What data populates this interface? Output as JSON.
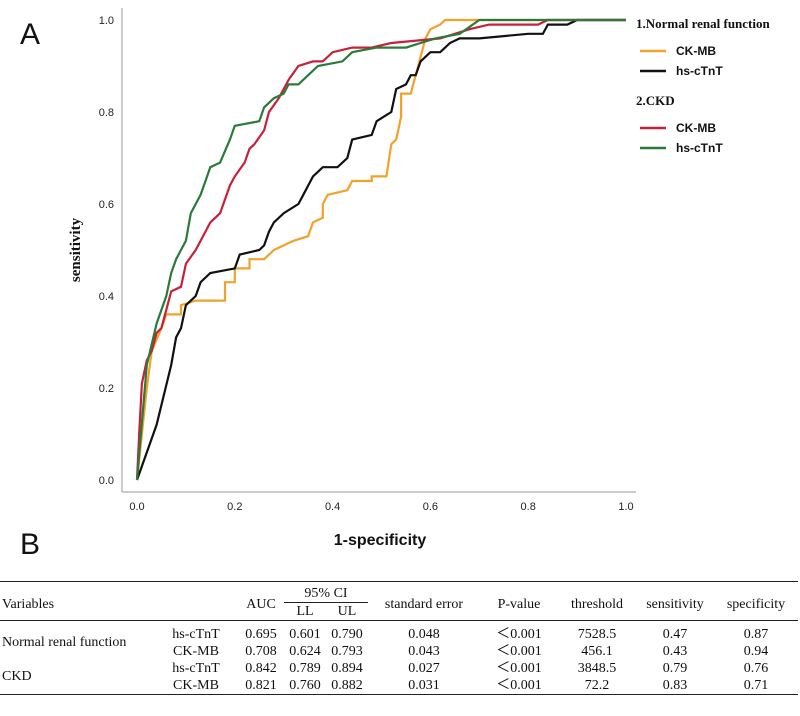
{
  "panel_a_label": "A",
  "panel_b_label": "B",
  "chart_data": {
    "type": "line",
    "title": "",
    "xlabel": "1-specificity",
    "ylabel": "sensitivity",
    "xlim": [
      0,
      1
    ],
    "ylim": [
      0,
      1
    ],
    "xticks": [
      "0.0",
      "0.2",
      "0.4",
      "0.6",
      "0.8",
      "1.0"
    ],
    "yticks": [
      "0.0",
      "0.2",
      "0.4",
      "0.6",
      "0.8",
      "1.0"
    ],
    "legend": {
      "groups": [
        {
          "title": "1.Normal renal function",
          "items": [
            {
              "label": "CK-MB",
              "color": "#F2A22A"
            },
            {
              "label": "hs-cTnT",
              "color": "#111111"
            }
          ]
        },
        {
          "title": "2.CKD",
          "items": [
            {
              "label": "CK-MB",
              "color": "#C8203A"
            },
            {
              "label": "hs-cTnT",
              "color": "#2A7A3A"
            }
          ]
        }
      ]
    },
    "series": [
      {
        "name": "Normal renal function CK-MB",
        "color": "#F2A22A",
        "points": [
          [
            0,
            0
          ],
          [
            0.01,
            0.1
          ],
          [
            0.02,
            0.2
          ],
          [
            0.03,
            0.28
          ],
          [
            0.05,
            0.33
          ],
          [
            0.06,
            0.36
          ],
          [
            0.09,
            0.36
          ],
          [
            0.09,
            0.38
          ],
          [
            0.12,
            0.39
          ],
          [
            0.18,
            0.39
          ],
          [
            0.18,
            0.43
          ],
          [
            0.2,
            0.43
          ],
          [
            0.2,
            0.46
          ],
          [
            0.23,
            0.46
          ],
          [
            0.23,
            0.48
          ],
          [
            0.26,
            0.48
          ],
          [
            0.28,
            0.5
          ],
          [
            0.3,
            0.51
          ],
          [
            0.32,
            0.52
          ],
          [
            0.35,
            0.53
          ],
          [
            0.36,
            0.56
          ],
          [
            0.38,
            0.57
          ],
          [
            0.38,
            0.6
          ],
          [
            0.39,
            0.62
          ],
          [
            0.43,
            0.63
          ],
          [
            0.44,
            0.65
          ],
          [
            0.48,
            0.65
          ],
          [
            0.48,
            0.66
          ],
          [
            0.51,
            0.66
          ],
          [
            0.52,
            0.73
          ],
          [
            0.53,
            0.74
          ],
          [
            0.54,
            0.79
          ],
          [
            0.54,
            0.84
          ],
          [
            0.56,
            0.84
          ],
          [
            0.58,
            0.92
          ],
          [
            0.59,
            0.96
          ],
          [
            0.6,
            0.98
          ],
          [
            0.62,
            0.99
          ],
          [
            0.63,
            1.0
          ],
          [
            0.68,
            1.0
          ],
          [
            1.0,
            1.0
          ]
        ]
      },
      {
        "name": "Normal renal function hs-cTnT",
        "color": "#111111",
        "points": [
          [
            0,
            0
          ],
          [
            0.04,
            0.12
          ],
          [
            0.07,
            0.25
          ],
          [
            0.08,
            0.31
          ],
          [
            0.09,
            0.33
          ],
          [
            0.1,
            0.38
          ],
          [
            0.12,
            0.4
          ],
          [
            0.13,
            0.43
          ],
          [
            0.15,
            0.45
          ],
          [
            0.2,
            0.46
          ],
          [
            0.21,
            0.49
          ],
          [
            0.25,
            0.5
          ],
          [
            0.26,
            0.51
          ],
          [
            0.27,
            0.54
          ],
          [
            0.28,
            0.56
          ],
          [
            0.3,
            0.58
          ],
          [
            0.33,
            0.6
          ],
          [
            0.34,
            0.62
          ],
          [
            0.36,
            0.66
          ],
          [
            0.38,
            0.68
          ],
          [
            0.41,
            0.68
          ],
          [
            0.43,
            0.7
          ],
          [
            0.44,
            0.74
          ],
          [
            0.48,
            0.75
          ],
          [
            0.49,
            0.78
          ],
          [
            0.52,
            0.8
          ],
          [
            0.53,
            0.85
          ],
          [
            0.55,
            0.86
          ],
          [
            0.56,
            0.88
          ],
          [
            0.57,
            0.88
          ],
          [
            0.58,
            0.91
          ],
          [
            0.6,
            0.93
          ],
          [
            0.62,
            0.93
          ],
          [
            0.64,
            0.95
          ],
          [
            0.66,
            0.96
          ],
          [
            0.7,
            0.96
          ],
          [
            0.8,
            0.97
          ],
          [
            0.83,
            0.97
          ],
          [
            0.84,
            0.99
          ],
          [
            0.88,
            0.99
          ],
          [
            0.9,
            1.0
          ],
          [
            1.0,
            1.0
          ]
        ]
      },
      {
        "name": "CKD CK-MB",
        "color": "#C8203A",
        "points": [
          [
            0,
            0
          ],
          [
            0.005,
            0.11
          ],
          [
            0.01,
            0.21
          ],
          [
            0.02,
            0.26
          ],
          [
            0.03,
            0.28
          ],
          [
            0.04,
            0.32
          ],
          [
            0.05,
            0.33
          ],
          [
            0.06,
            0.37
          ],
          [
            0.07,
            0.41
          ],
          [
            0.09,
            0.42
          ],
          [
            0.1,
            0.47
          ],
          [
            0.12,
            0.5
          ],
          [
            0.13,
            0.52
          ],
          [
            0.15,
            0.56
          ],
          [
            0.17,
            0.58
          ],
          [
            0.18,
            0.61
          ],
          [
            0.19,
            0.64
          ],
          [
            0.2,
            0.66
          ],
          [
            0.22,
            0.69
          ],
          [
            0.23,
            0.72
          ],
          [
            0.24,
            0.73
          ],
          [
            0.26,
            0.76
          ],
          [
            0.27,
            0.8
          ],
          [
            0.29,
            0.83
          ],
          [
            0.31,
            0.87
          ],
          [
            0.33,
            0.9
          ],
          [
            0.36,
            0.91
          ],
          [
            0.38,
            0.91
          ],
          [
            0.4,
            0.93
          ],
          [
            0.44,
            0.94
          ],
          [
            0.48,
            0.94
          ],
          [
            0.52,
            0.95
          ],
          [
            0.62,
            0.96
          ],
          [
            0.68,
            0.98
          ],
          [
            0.72,
            0.99
          ],
          [
            0.82,
            0.99
          ],
          [
            0.84,
            1.0
          ],
          [
            1.0,
            1.0
          ]
        ]
      },
      {
        "name": "CKD hs-cTnT",
        "color": "#2A7A3A",
        "points": [
          [
            0,
            0
          ],
          [
            0.02,
            0.25
          ],
          [
            0.04,
            0.34
          ],
          [
            0.06,
            0.4
          ],
          [
            0.07,
            0.45
          ],
          [
            0.08,
            0.48
          ],
          [
            0.1,
            0.52
          ],
          [
            0.11,
            0.58
          ],
          [
            0.12,
            0.6
          ],
          [
            0.13,
            0.62
          ],
          [
            0.14,
            0.65
          ],
          [
            0.15,
            0.68
          ],
          [
            0.17,
            0.69
          ],
          [
            0.19,
            0.74
          ],
          [
            0.2,
            0.77
          ],
          [
            0.25,
            0.78
          ],
          [
            0.26,
            0.81
          ],
          [
            0.28,
            0.83
          ],
          [
            0.3,
            0.84
          ],
          [
            0.31,
            0.86
          ],
          [
            0.33,
            0.86
          ],
          [
            0.37,
            0.9
          ],
          [
            0.42,
            0.91
          ],
          [
            0.44,
            0.93
          ],
          [
            0.49,
            0.94
          ],
          [
            0.55,
            0.94
          ],
          [
            0.58,
            0.95
          ],
          [
            0.61,
            0.96
          ],
          [
            0.66,
            0.97
          ],
          [
            0.7,
            1.0
          ],
          [
            1.0,
            1.0
          ]
        ]
      }
    ]
  },
  "table": {
    "headers": {
      "variables": "Variables",
      "auc": "AUC",
      "ci": "95% CI",
      "ll": "LL",
      "ul": "UL",
      "se": "standard error",
      "p": "P-value",
      "threshold": "threshold",
      "sensitivity": "sensitivity",
      "specificity": "specificity"
    },
    "groups": [
      {
        "name": "Normal renal function",
        "rows": [
          {
            "marker": "hs-cTnT",
            "auc": "0.695",
            "ll": "0.601",
            "ul": "0.790",
            "se": "0.048",
            "p": "＜0.001",
            "threshold": "7528.5",
            "sensitivity": "0.47",
            "specificity": "0.87"
          },
          {
            "marker": "CK-MB",
            "auc": "0.708",
            "ll": "0.624",
            "ul": "0.793",
            "se": "0.043",
            "p": "＜0.001",
            "threshold": "456.1",
            "sensitivity": "0.43",
            "specificity": "0.94"
          }
        ]
      },
      {
        "name": "CKD",
        "rows": [
          {
            "marker": "hs-cTnT",
            "auc": "0.842",
            "ll": "0.789",
            "ul": "0.894",
            "se": "0.027",
            "p": "＜0.001",
            "threshold": "3848.5",
            "sensitivity": "0.79",
            "specificity": "0.76"
          },
          {
            "marker": "CK-MB",
            "auc": "0.821",
            "ll": "0.760",
            "ul": "0.882",
            "se": "0.031",
            "p": "＜0.001",
            "threshold": "72.2",
            "sensitivity": "0.83",
            "specificity": "0.71"
          }
        ]
      }
    ]
  }
}
